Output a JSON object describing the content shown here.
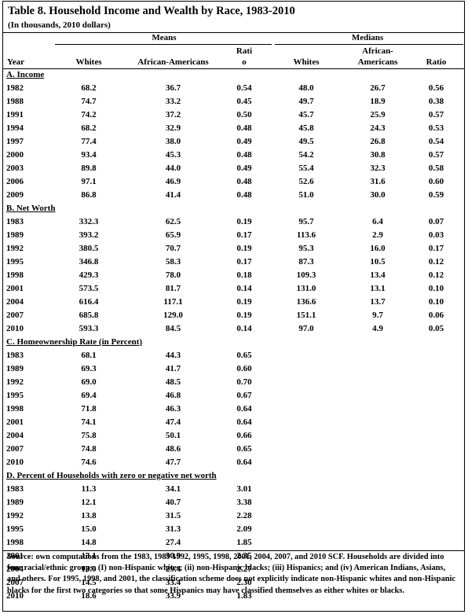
{
  "title": "Table 8. Household Income and Wealth by Race, 1983-2010",
  "subtitle": "(In thousands, 2010 dollars)",
  "headers": {
    "year": "Year",
    "means": "Means",
    "medians": "Medians",
    "means_whites": "Whites",
    "means_african_americans": "African-Americans",
    "means_ratio_line1": "Rati",
    "means_ratio_line2": "o",
    "medians_whites": "Whites",
    "medians_african_line1": "African-",
    "medians_african_line2": "Americans",
    "medians_ratio": "Ratio"
  },
  "sections": [
    {
      "label": "A. Income",
      "rows": [
        [
          "1982",
          "68.2",
          "36.7",
          "0.54",
          "48.0",
          "26.7",
          "0.56"
        ],
        [
          "1988",
          "74.7",
          "33.2",
          "0.45",
          "49.7",
          "18.9",
          "0.38"
        ],
        [
          "1991",
          "74.2",
          "37.2",
          "0.50",
          "45.7",
          "25.9",
          "0.57"
        ],
        [
          "1994",
          "68.2",
          "32.9",
          "0.48",
          "45.8",
          "24.3",
          "0.53"
        ],
        [
          "1997",
          "77.4",
          "38.0",
          "0.49",
          "49.5",
          "26.8",
          "0.54"
        ],
        [
          "2000",
          "93.4",
          "45.3",
          "0.48",
          "54.2",
          "30.8",
          "0.57"
        ],
        [
          "2003",
          "89.8",
          "44.0",
          "0.49",
          "55.4",
          "32.3",
          "0.58"
        ],
        [
          "2006",
          "97.1",
          "46.9",
          "0.48",
          "52.6",
          "31.6",
          "0.60"
        ],
        [
          "2009",
          "86.8",
          "41.4",
          "0.48",
          "51.0",
          "30.0",
          "0.59"
        ]
      ]
    },
    {
      "label": "B. Net Worth",
      "rows": [
        [
          "1983",
          "332.3",
          "62.5",
          "0.19",
          "95.7",
          "6.4",
          "0.07"
        ],
        [
          "1989",
          "393.2",
          "65.9",
          "0.17",
          "113.6",
          "2.9",
          "0.03"
        ],
        [
          "1992",
          "380.5",
          "70.7",
          "0.19",
          "95.3",
          "16.0",
          "0.17"
        ],
        [
          "1995",
          "346.8",
          "58.3",
          "0.17",
          "87.3",
          "10.5",
          "0.12"
        ],
        [
          "1998",
          "429.3",
          "78.0",
          "0.18",
          "109.3",
          "13.4",
          "0.12"
        ],
        [
          "2001",
          "573.5",
          "81.7",
          "0.14",
          "131.0",
          "13.1",
          "0.10"
        ],
        [
          "2004",
          "616.4",
          "117.1",
          "0.19",
          "136.6",
          "13.7",
          "0.10"
        ],
        [
          "2007",
          "685.8",
          "129.0",
          "0.19",
          "151.1",
          "9.7",
          "0.06"
        ],
        [
          "2010",
          "593.3",
          "84.5",
          "0.14",
          "97.0",
          "4.9",
          "0.05"
        ]
      ]
    },
    {
      "label": "C. Homeownership Rate (in Percent)",
      "rows": [
        [
          "1983",
          "68.1",
          "44.3",
          "0.65",
          "",
          "",
          ""
        ],
        [
          "1989",
          "69.3",
          "41.7",
          "0.60",
          "",
          "",
          ""
        ],
        [
          "1992",
          "69.0",
          "48.5",
          "0.70",
          "",
          "",
          ""
        ],
        [
          "1995",
          "69.4",
          "46.8",
          "0.67",
          "",
          "",
          ""
        ],
        [
          "1998",
          "71.8",
          "46.3",
          "0.64",
          "",
          "",
          ""
        ],
        [
          "2001",
          "74.1",
          "47.4",
          "0.64",
          "",
          "",
          ""
        ],
        [
          "2004",
          "75.8",
          "50.1",
          "0.66",
          "",
          "",
          ""
        ],
        [
          "2007",
          "74.8",
          "48.6",
          "0.65",
          "",
          "",
          ""
        ],
        [
          "2010",
          "74.6",
          "47.7",
          "0.64",
          "",
          "",
          ""
        ]
      ]
    },
    {
      "label": "D. Percent of Households with zero or negative net worth",
      "rows": [
        [
          "1983",
          "11.3",
          "34.1",
          "3.01",
          "",
          "",
          ""
        ],
        [
          "1989",
          "12.1",
          "40.7",
          "3.38",
          "",
          "",
          ""
        ],
        [
          "1992",
          "13.8",
          "31.5",
          "2.28",
          "",
          "",
          ""
        ],
        [
          "1995",
          "15.0",
          "31.3",
          "2.09",
          "",
          "",
          ""
        ],
        [
          "1998",
          "14.8",
          "27.4",
          "1.85",
          "",
          "",
          ""
        ],
        [
          "2001",
          "13.1",
          "30.9",
          "2.35",
          "",
          "",
          ""
        ],
        [
          "2004",
          "13.0",
          "29.4",
          "2.27",
          "",
          "",
          ""
        ],
        [
          "2007",
          "14.5",
          "33.4",
          "2.30",
          "",
          "",
          ""
        ],
        [
          "2010",
          "18.6",
          "33.9",
          "1.83",
          "",
          "",
          ""
        ]
      ]
    }
  ],
  "source_note": "Source:  own computations from the 1983, 1989 1992, 1995, 1998, 2001, 2004, 2007, and 2010 SCF. Households are divided into four racial/ethnic groups: (I) non-Hispanic whites; (ii) non-Hispanic blacks; (iii) Hispanics; and (iv) American Indians, Asians, and others. For 1995, 1998, and 2001, the classification scheme does not explicitly indicate non-Hispanic whites and non-Hispanic blacks for the first two categories so that some Hispanics may have classified themselves as either whites or blacks."
}
